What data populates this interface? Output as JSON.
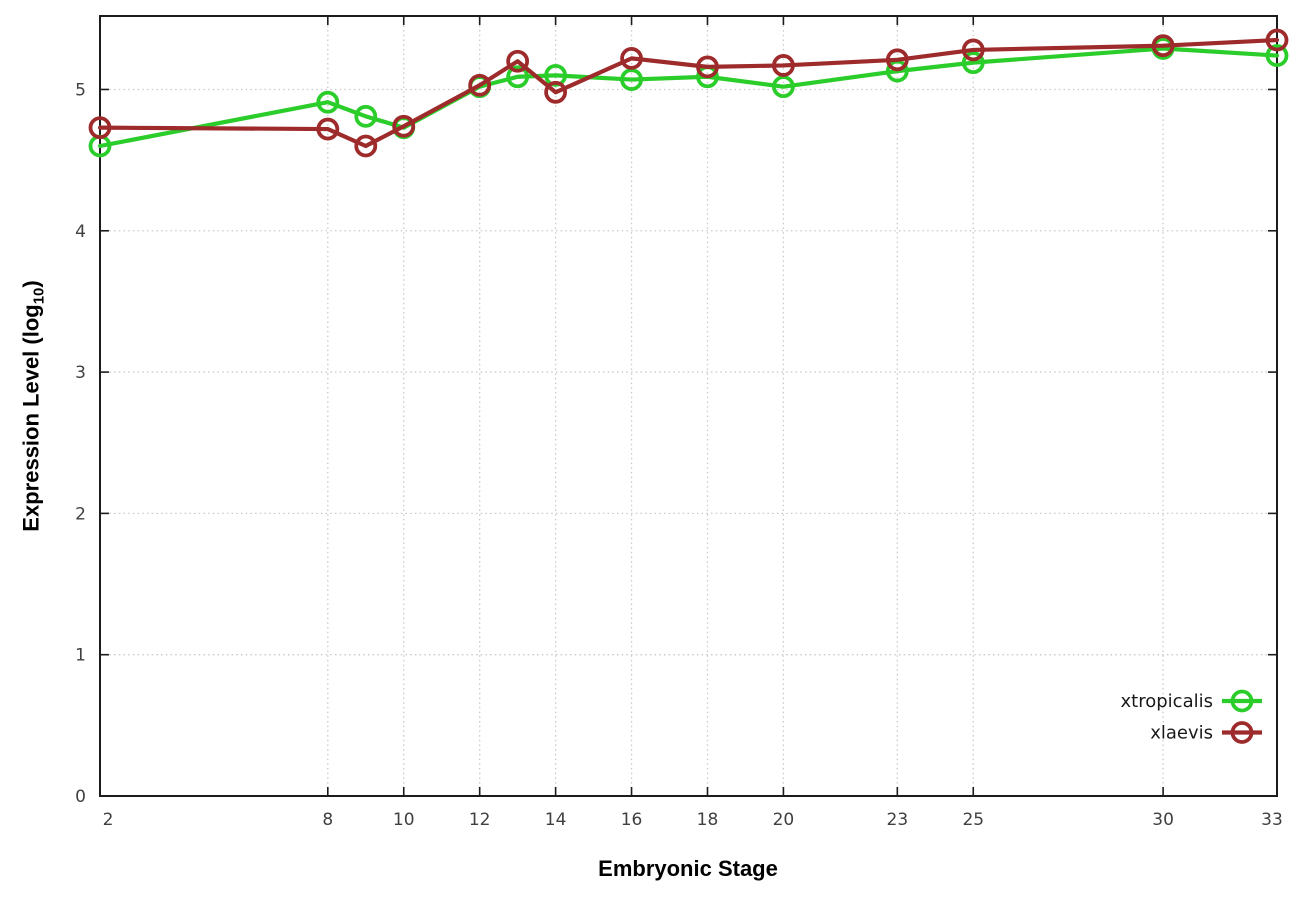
{
  "chart_data": {
    "type": "line",
    "title": "",
    "xlabel": "Embryonic Stage",
    "ylabel": "Expression Level (log10)",
    "ylabel_parts": {
      "main": "Expression Level (log",
      "sub": "10",
      "end": ")"
    },
    "x": [
      2,
      8,
      9,
      10,
      12,
      13,
      14,
      16,
      18,
      20,
      23,
      25,
      30,
      33
    ],
    "x_ticks": [
      2,
      8,
      10,
      12,
      14,
      16,
      18,
      20,
      23,
      25,
      30,
      33
    ],
    "y_ticks": [
      0,
      1,
      2,
      3,
      4,
      5
    ],
    "xlim": [
      2,
      33
    ],
    "ylim": [
      0,
      5.52
    ],
    "grid": true,
    "legend_position": "bottom-right",
    "series": [
      {
        "name": "xtropicalis",
        "color": "#2bcd2b",
        "values": [
          4.6,
          4.91,
          4.81,
          4.73,
          5.02,
          5.09,
          5.1,
          5.07,
          5.09,
          5.02,
          5.13,
          5.19,
          5.29,
          5.24
        ]
      },
      {
        "name": "xlaevis",
        "color": "#9e2b2b",
        "values": [
          4.73,
          4.72,
          4.6,
          4.74,
          5.03,
          5.2,
          4.98,
          5.22,
          5.16,
          5.17,
          5.21,
          5.28,
          5.31,
          5.35
        ]
      }
    ],
    "axis_color": "#1c1c1c",
    "tick_label_color": "#404040",
    "grid_color": "#c9c9c9"
  }
}
